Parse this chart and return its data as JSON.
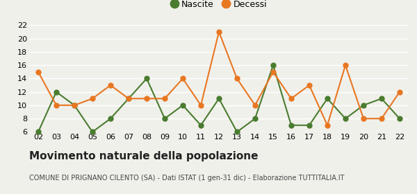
{
  "years": [
    2,
    3,
    4,
    5,
    6,
    7,
    8,
    9,
    10,
    11,
    12,
    13,
    14,
    15,
    16,
    17,
    18,
    19,
    20,
    21,
    22
  ],
  "nascite": [
    6,
    12,
    10,
    6,
    8,
    11,
    14,
    8,
    10,
    7,
    11,
    6,
    8,
    16,
    7,
    7,
    11,
    8,
    10,
    11,
    8
  ],
  "decessi": [
    15,
    10,
    10,
    11,
    13,
    11,
    11,
    11,
    14,
    10,
    21,
    14,
    10,
    15,
    11,
    13,
    7,
    16,
    8,
    8,
    12
  ],
  "nascite_color": "#4a7c2f",
  "decessi_color": "#e87722",
  "title": "Movimento naturale della popolazione",
  "subtitle": "COMUNE DI PRIGNANO CILENTO (SA) - Dati ISTAT (1 gen-31 dic) - Elaborazione TUTTITALIA.IT",
  "legend_nascite": "Nascite",
  "legend_decessi": "Decessi",
  "ylim": [
    6,
    22
  ],
  "yticks": [
    6,
    8,
    10,
    12,
    14,
    16,
    18,
    20,
    22
  ],
  "background_color": "#f0f0eb",
  "grid_color": "#ffffff",
  "marker_size": 5,
  "linewidth": 1.5,
  "title_fontsize": 11,
  "subtitle_fontsize": 7,
  "tick_fontsize": 8,
  "legend_fontsize": 9
}
